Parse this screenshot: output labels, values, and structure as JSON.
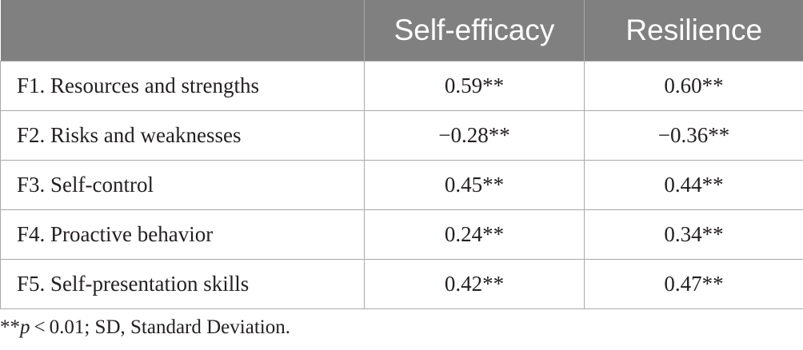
{
  "table": {
    "headers": [
      "",
      "Self-efficacy",
      "Resilience"
    ],
    "rows": [
      {
        "label": "F1. Resources and strengths",
        "self_efficacy": "0.59**",
        "resilience": "0.60**"
      },
      {
        "label": "F2. Risks and weaknesses",
        "self_efficacy": "−0.28**",
        "resilience": "−0.36**"
      },
      {
        "label": "F3. Self-control",
        "self_efficacy": "0.45**",
        "resilience": "0.44**"
      },
      {
        "label": "F4. Proactive behavior",
        "self_efficacy": "0.24**",
        "resilience": "0.34**"
      },
      {
        "label": "F5. Self-presentation skills",
        "self_efficacy": "0.42**",
        "resilience": "0.47**"
      }
    ]
  },
  "footnote": {
    "prefix": "**",
    "p_symbol": "p",
    "rest": " < 0.01; SD, Standard Deviation."
  }
}
